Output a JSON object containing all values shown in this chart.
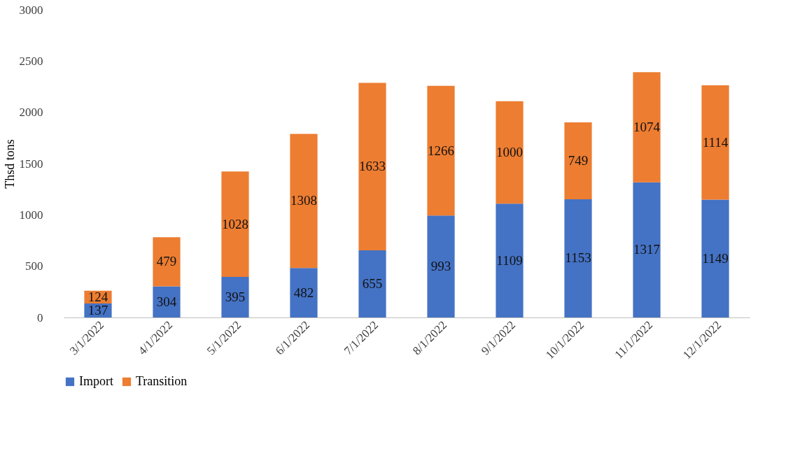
{
  "chart_data": {
    "type": "bar",
    "stacked": true,
    "ylabel": "Thsd tons",
    "categories": [
      "3/1/2022",
      "4/1/2022",
      "5/1/2022",
      "6/1/2022",
      "7/1/2022",
      "8/1/2022",
      "9/1/2022",
      "10/1/2022",
      "11/1/2022",
      "12/1/2022"
    ],
    "series": [
      {
        "name": "Import",
        "color": "#4472c4",
        "values": [
          137,
          304,
          395,
          482,
          655,
          993,
          1109,
          1153,
          1317,
          1149
        ]
      },
      {
        "name": "Transition",
        "color": "#ed7d31",
        "values": [
          124,
          479,
          1028,
          1308,
          1633,
          1266,
          1000,
          749,
          1074,
          1114
        ]
      }
    ],
    "ylim": [
      0,
      3000
    ],
    "yticks": [
      0,
      500,
      1000,
      1500,
      2000,
      2500,
      3000
    ],
    "data_labels": true,
    "grid": false,
    "legend": "bottom"
  }
}
